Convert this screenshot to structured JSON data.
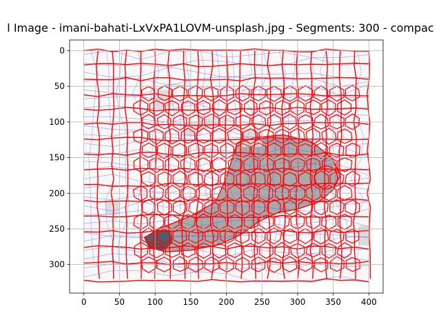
{
  "chart_data": {
    "type": "image",
    "title": "l Image - imani-bahati-LxVxPA1LOVM-unsplash.jpg - Segments: 300 - compac",
    "xlabel": "",
    "ylabel": "",
    "xlim": [
      -20,
      420
    ],
    "ylim": [
      340,
      -15
    ],
    "x_ticks": [
      0,
      50,
      100,
      150,
      200,
      250,
      300,
      350,
      400
    ],
    "y_ticks": [
      0,
      50,
      100,
      150,
      200,
      250,
      300
    ],
    "grid": true,
    "image_extent": {
      "x": [
        0,
        400
      ],
      "y": [
        0,
        325
      ]
    },
    "segments": 300,
    "colors": {
      "background": "#f7f7f7",
      "segment_boundary": "#ff0000",
      "flow_lines": "#4a4aff",
      "object_fill": "#a9a9a9",
      "object_dark": "#5a5a5a",
      "light_cell": "#dcdcdc"
    }
  }
}
